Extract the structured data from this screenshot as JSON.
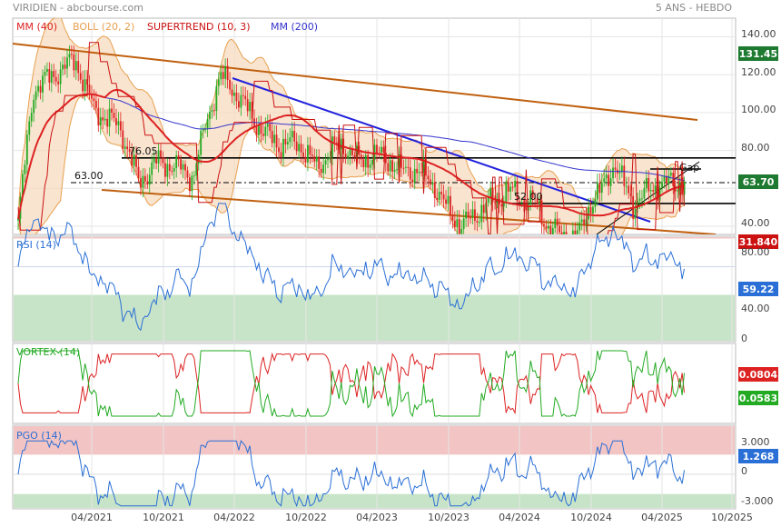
{
  "header": {
    "source": "VIRIDIEN - abcbourse.com",
    "period": "5 ANS - HEBDO"
  },
  "colors": {
    "up": "#22aa22",
    "down": "#dd2222",
    "mm40": "#dd2222",
    "boll": "#e8a050",
    "supertrend": "#cc1111",
    "mm200": "#3333cc",
    "trend": "#c06010",
    "trend_blue": "#2222dd",
    "rsi": "#2a6fd6",
    "vortex_pos": "#22aa22",
    "vortex_neg": "#dd2222",
    "pgo": "#2a6fd6",
    "zone_hi": "#f2c4c4",
    "zone_lo": "#c8e4c8",
    "price_badge": "#1e7a30",
    "st_badge": "#cc1111"
  },
  "legend": [
    {
      "label": "MM (40)",
      "color": "#dd2222"
    },
    {
      "label": "BOLL (20, 2)",
      "color": "#e8a050"
    },
    {
      "label": "SUPERTREND (10, 3)",
      "color": "#cc1111"
    },
    {
      "label": "MM (200)",
      "color": "#3333cc"
    }
  ],
  "chart_data": [
    {
      "type": "candlestick",
      "panel": "price",
      "x_range": [
        "11/2020",
        "10/2025"
      ],
      "ylim": [
        20,
        145
      ],
      "yticks": [
        "140.00",
        "120.00",
        "100.00",
        "80.00",
        "60.00",
        "40.00"
      ],
      "ytick_values": [
        140,
        120,
        100,
        80,
        60,
        40
      ],
      "xticks": [
        "04/2021",
        "10/2021",
        "04/2022",
        "10/2022",
        "04/2023",
        "10/2023",
        "04/2024",
        "10/2024",
        "04/2025",
        "10/2025"
      ],
      "price_path": [
        [
          0,
          42
        ],
        [
          10,
          112
        ],
        [
          20,
          118
        ],
        [
          38,
          128
        ],
        [
          50,
          102
        ],
        [
          68,
          92
        ],
        [
          80,
          63
        ],
        [
          92,
          74
        ],
        [
          104,
          72
        ],
        [
          116,
          66
        ],
        [
          126,
          98
        ],
        [
          134,
          119
        ],
        [
          140,
          115
        ],
        [
          150,
          104
        ],
        [
          162,
          90
        ],
        [
          174,
          83
        ],
        [
          186,
          84
        ],
        [
          198,
          71
        ],
        [
          208,
          80
        ],
        [
          216,
          83
        ],
        [
          226,
          74
        ],
        [
          236,
          78
        ],
        [
          246,
          75
        ],
        [
          254,
          69
        ],
        [
          264,
          70
        ],
        [
          276,
          62
        ],
        [
          286,
          47
        ],
        [
          294,
          41
        ],
        [
          302,
          44
        ],
        [
          310,
          52
        ],
        [
          318,
          53
        ],
        [
          324,
          60
        ],
        [
          332,
          55
        ],
        [
          342,
          53
        ],
        [
          352,
          40
        ],
        [
          362,
          34
        ],
        [
          372,
          35
        ],
        [
          380,
          53
        ],
        [
          388,
          60
        ],
        [
          396,
          74
        ],
        [
          402,
          61
        ],
        [
          408,
          52
        ],
        [
          416,
          57
        ],
        [
          426,
          63
        ],
        [
          436,
          62
        ],
        [
          442,
          64
        ]
      ],
      "resistance_levels": [
        {
          "label": "131.45",
          "value": 131.45
        },
        {
          "label": "76.05",
          "value": 76.05
        },
        {
          "label": "63.00",
          "value": 63.0
        },
        {
          "label": "52.00",
          "value": 52.0
        }
      ],
      "last_price": {
        "label": "63.70",
        "value": 63.7
      },
      "supertrend_last": {
        "label": "31.840",
        "value": 31.84
      },
      "annotations": [
        "Gap"
      ]
    },
    {
      "type": "line",
      "panel": "rsi",
      "title": "RSI (14)",
      "ylim": [
        0,
        100
      ],
      "yticks": [
        "80.00",
        "40.00",
        "0"
      ],
      "ytick_values": [
        80,
        40,
        0
      ],
      "zones": [
        70,
        30
      ],
      "last": {
        "label": "59.22",
        "value": 59.22
      }
    },
    {
      "type": "line",
      "panel": "vortex",
      "title": "VORTEX (14)",
      "series": [
        {
          "last": {
            "label": "0.0804",
            "value": 0.0804
          }
        },
        {
          "last": {
            "label": "0.0583",
            "value": 0.0583
          }
        }
      ]
    },
    {
      "type": "line",
      "panel": "pgo",
      "title": "PGO (14)",
      "ylim": [
        -3.5,
        4
      ],
      "yticks": [
        "3.000",
        "0",
        "-3.000"
      ],
      "ytick_values": [
        3,
        0,
        -3
      ],
      "zones": [
        2,
        -2
      ],
      "last": {
        "label": "1.268",
        "value": 1.268
      }
    }
  ]
}
